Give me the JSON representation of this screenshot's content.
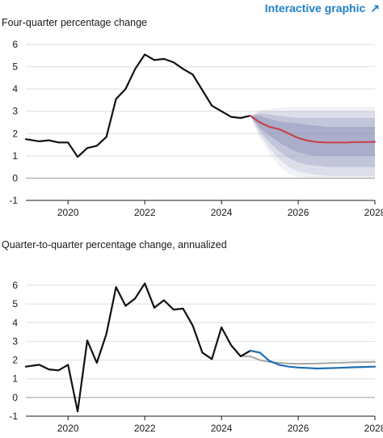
{
  "header": {
    "link_label": "Interactive graphic",
    "link_icon": "arrow-up-right-icon"
  },
  "chart_data": [
    {
      "type": "line",
      "title": "Four-quarter percentage change",
      "xlim": [
        2018.9,
        2028
      ],
      "ylim": [
        -1,
        6
      ],
      "xticks": [
        2020,
        2022,
        2024,
        2026,
        2028
      ],
      "xtick_labels": [
        "2020",
        "2022",
        "2024",
        "2026",
        "2028"
      ],
      "yticks": [
        -1,
        0,
        1,
        2,
        3,
        4,
        5,
        6
      ],
      "ytick_labels": [
        "-1",
        "0",
        "1",
        "2",
        "3",
        "4",
        "5",
        "6"
      ],
      "grid": "horizontal",
      "colors": {
        "history": "#111111",
        "forecast": "#c8434d",
        "band": "#8b90b8"
      },
      "series": [
        {
          "role": "history",
          "x": [
            2018.9,
            2019.25,
            2019.5,
            2019.75,
            2020.0,
            2020.25,
            2020.5,
            2020.75,
            2021.0,
            2021.25,
            2021.5,
            2021.75,
            2022.0,
            2022.25,
            2022.5,
            2022.75,
            2023.0,
            2023.25,
            2023.5,
            2023.75,
            2024.0,
            2024.25,
            2024.5,
            2024.75
          ],
          "y": [
            1.75,
            1.65,
            1.7,
            1.6,
            1.6,
            0.95,
            1.35,
            1.45,
            1.85,
            3.55,
            4.0,
            4.9,
            5.55,
            5.3,
            5.35,
            5.2,
            4.9,
            4.65,
            3.95,
            3.25,
            3.0,
            2.75,
            2.7,
            2.8
          ]
        },
        {
          "role": "forecast",
          "x": [
            2024.75,
            2025.0,
            2025.25,
            2025.5,
            2025.75,
            2026.0,
            2026.25,
            2026.5,
            2026.75,
            2027.0,
            2027.25,
            2027.5,
            2027.75,
            2028.0
          ],
          "y": [
            2.8,
            2.5,
            2.3,
            2.2,
            2.0,
            1.8,
            1.68,
            1.62,
            1.6,
            1.6,
            1.6,
            1.62,
            1.62,
            1.63
          ]
        }
      ],
      "fan_bands": [
        {
          "lower": [
            2.8,
            2.25,
            1.9,
            1.6,
            1.35,
            1.15,
            1.05,
            1.0,
            1.0,
            1.0,
            1.0,
            1.0,
            1.0,
            1.0
          ],
          "upper": [
            2.8,
            2.8,
            2.65,
            2.55,
            2.5,
            2.45,
            2.4,
            2.35,
            2.3,
            2.3,
            2.3,
            2.3,
            2.3,
            2.3
          ],
          "opacity": 0.45
        },
        {
          "lower": [
            2.8,
            2.1,
            1.6,
            1.2,
            0.9,
            0.7,
            0.6,
            0.55,
            0.5,
            0.5,
            0.5,
            0.5,
            0.5,
            0.5
          ],
          "upper": [
            2.8,
            2.9,
            2.85,
            2.8,
            2.75,
            2.7,
            2.7,
            2.7,
            2.7,
            2.7,
            2.7,
            2.7,
            2.7,
            2.7
          ],
          "opacity": 0.3
        },
        {
          "lower": [
            2.8,
            1.95,
            1.35,
            0.85,
            0.5,
            0.3,
            0.2,
            0.15,
            0.1,
            0.1,
            0.1,
            0.1,
            0.1,
            0.1
          ],
          "upper": [
            2.8,
            3.0,
            3.0,
            3.0,
            3.0,
            3.0,
            3.0,
            3.0,
            3.0,
            3.0,
            3.0,
            3.0,
            3.0,
            3.0
          ],
          "opacity": 0.2
        },
        {
          "lower": [
            2.8,
            1.8,
            1.1,
            0.55,
            0.2,
            0.05,
            0.0,
            0.0,
            0.0,
            0.0,
            0.0,
            0.0,
            0.0,
            0.0
          ],
          "upper": [
            2.8,
            3.05,
            3.1,
            3.15,
            3.2,
            3.2,
            3.2,
            3.2,
            3.2,
            3.2,
            3.2,
            3.2,
            3.2,
            3.2
          ],
          "opacity": 0.12
        }
      ]
    },
    {
      "type": "line",
      "title": "Quarter-to-quarter percentage change, annualized",
      "xlim": [
        2018.9,
        2028
      ],
      "ylim": [
        -1,
        6
      ],
      "xticks": [
        2020,
        2022,
        2024,
        2026,
        2028
      ],
      "xtick_labels": [
        "2020",
        "2022",
        "2024",
        "2026",
        "2028"
      ],
      "yticks": [
        -1,
        0,
        1,
        2,
        3,
        4,
        5,
        6
      ],
      "ytick_labels": [
        "-1",
        "0",
        "1",
        "2",
        "3",
        "4",
        "5",
        "6"
      ],
      "grid": "horizontal",
      "colors": {
        "history": "#111111",
        "forecast": "#1f6eb0",
        "alternative": "#a6a6a6"
      },
      "series": [
        {
          "role": "history",
          "x": [
            2018.9,
            2019.25,
            2019.5,
            2019.75,
            2020.0,
            2020.25,
            2020.5,
            2020.75,
            2021.0,
            2021.25,
            2021.5,
            2021.75,
            2022.0,
            2022.25,
            2022.5,
            2022.75,
            2023.0,
            2023.25,
            2023.5,
            2023.75,
            2024.0,
            2024.25,
            2024.5,
            2024.75
          ],
          "y": [
            1.65,
            1.75,
            1.5,
            1.45,
            1.75,
            -0.75,
            3.05,
            1.85,
            3.4,
            5.9,
            4.9,
            5.3,
            6.1,
            4.8,
            5.2,
            4.7,
            4.75,
            3.85,
            2.4,
            2.05,
            3.75,
            2.8,
            2.2,
            2.5
          ]
        },
        {
          "role": "alternative",
          "x": [
            2024.5,
            2024.75,
            2025.0,
            2025.25,
            2025.5,
            2025.75,
            2026.0,
            2026.5,
            2027.0,
            2027.5,
            2028.0
          ],
          "y": [
            2.2,
            2.2,
            2.0,
            1.9,
            1.85,
            1.82,
            1.8,
            1.82,
            1.85,
            1.88,
            1.9
          ]
        },
        {
          "role": "forecast",
          "x": [
            2024.75,
            2025.0,
            2025.25,
            2025.5,
            2025.75,
            2026.0,
            2026.5,
            2027.0,
            2027.5,
            2028.0
          ],
          "y": [
            2.5,
            2.4,
            1.95,
            1.75,
            1.65,
            1.6,
            1.55,
            1.58,
            1.62,
            1.65
          ]
        }
      ]
    }
  ]
}
